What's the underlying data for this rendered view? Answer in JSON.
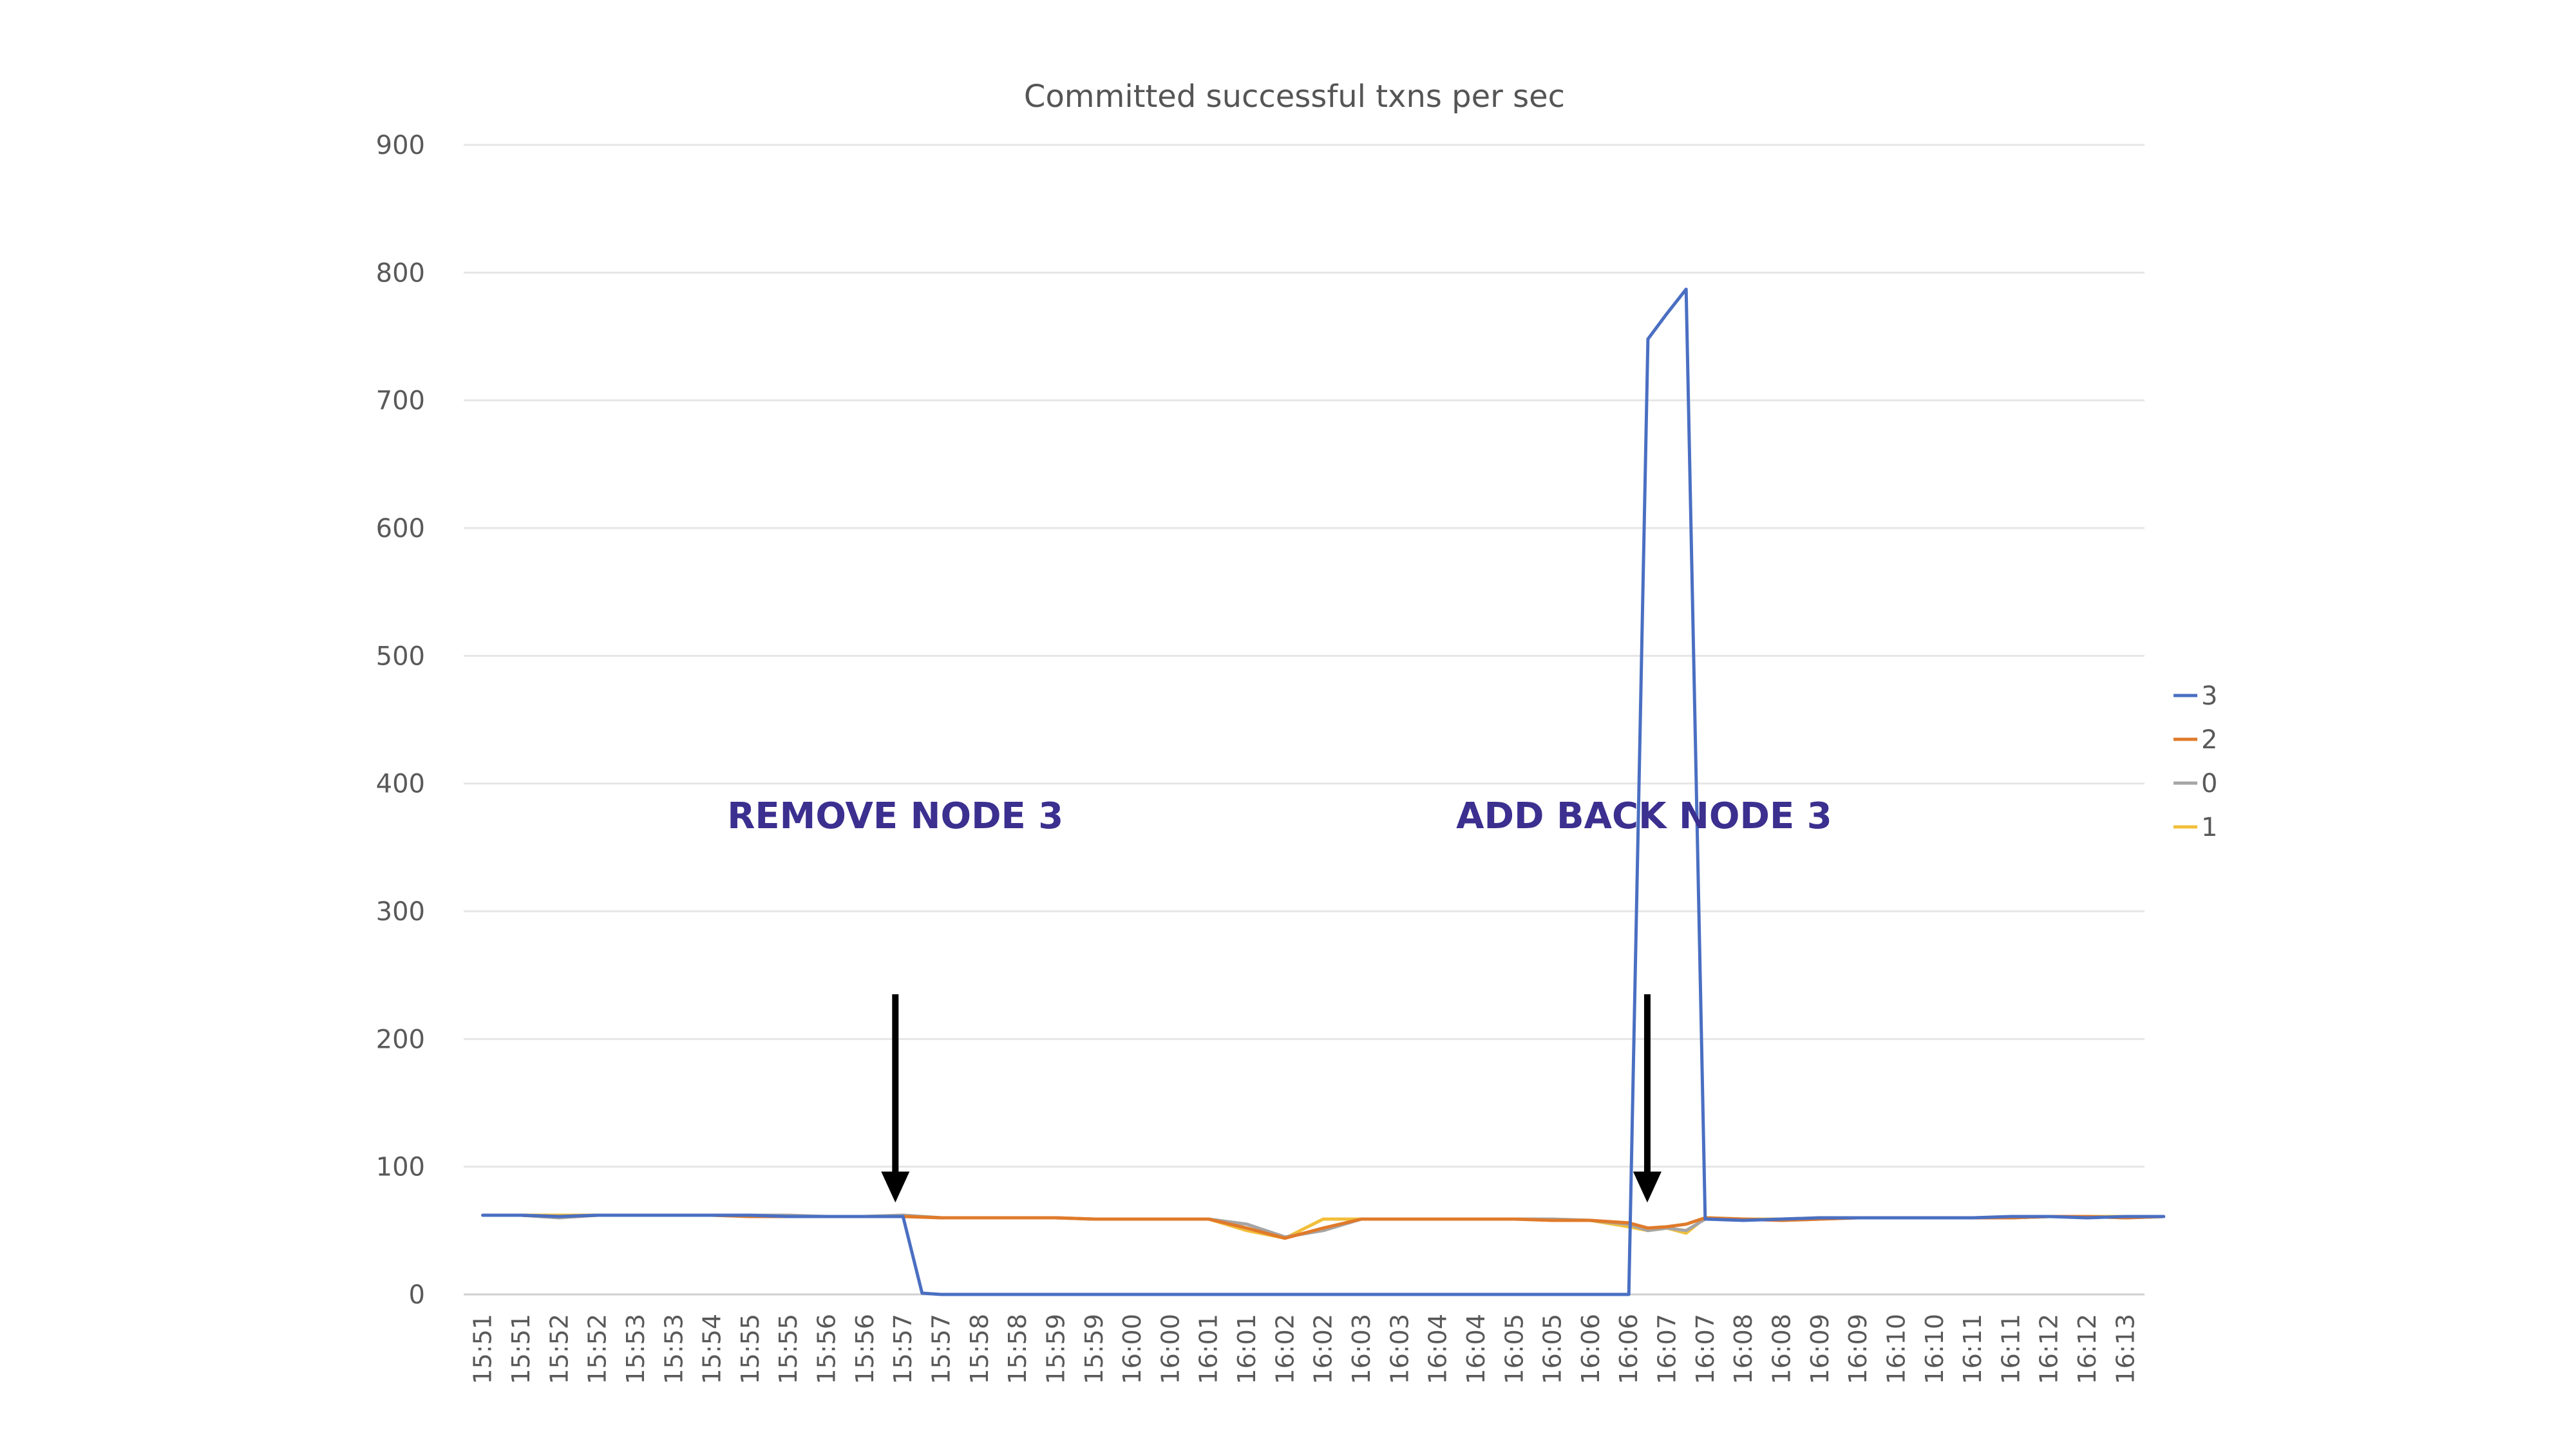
{
  "colors": {
    "series_3": "#4a6fc2",
    "series_2": "#e07a2b",
    "series_0": "#a5a5a5",
    "series_1": "#f2bf3a",
    "annotation": "#3b2f8f",
    "arrow": "#000000",
    "grid": "#e6e6e6"
  },
  "chart_data": {
    "type": "line",
    "title": "Committed successful txns per sec",
    "xlabel": "",
    "ylabel": "",
    "ylim": [
      0,
      900
    ],
    "yticks": [
      0,
      100,
      200,
      300,
      400,
      500,
      600,
      700,
      800,
      900
    ],
    "grid": true,
    "legend": "right",
    "categories": [
      "15:51",
      "15:51",
      "15:52",
      "15:52",
      "15:53",
      "15:53",
      "15:54",
      "15:55",
      "15:55",
      "15:56",
      "15:56",
      "15:57",
      "15:57",
      "15:58",
      "15:58",
      "15:59",
      "15:59",
      "16:00",
      "16:00",
      "16:01",
      "16:01",
      "16:02",
      "16:02",
      "16:03",
      "16:03",
      "16:04",
      "16:04",
      "16:05",
      "16:05",
      "16:06",
      "16:06",
      "16:07",
      "16:07",
      "16:08",
      "16:08",
      "16:09",
      "16:09",
      "16:10",
      "16:10",
      "16:11",
      "16:11",
      "16:12",
      "16:12",
      "16:13"
    ],
    "series": [
      {
        "name": "3",
        "color": "#4a6fc2",
        "x": [
          0,
          1,
          2,
          3,
          4,
          5,
          6,
          7,
          8,
          9,
          10,
          11,
          11.5,
          12,
          13,
          14,
          15,
          16,
          17,
          18,
          19,
          20,
          21,
          22,
          23,
          24,
          25,
          26,
          27,
          28,
          29,
          29.5,
          30,
          30.5,
          31,
          31.5,
          32,
          33,
          34,
          35,
          36,
          37,
          38,
          39,
          40,
          41,
          42,
          43,
          44
        ],
        "values": [
          62,
          62,
          61,
          62,
          62,
          62,
          62,
          62,
          61,
          61,
          61,
          61,
          1,
          0,
          0,
          0,
          0,
          0,
          0,
          0,
          0,
          0,
          0,
          0,
          0,
          0,
          0,
          0,
          0,
          0,
          0,
          0,
          0,
          748,
          768,
          787,
          59,
          58,
          59,
          60,
          60,
          60,
          60,
          60,
          61,
          61,
          60,
          61,
          61
        ]
      },
      {
        "name": "2",
        "color": "#e07a2b",
        "x": [
          0,
          1,
          2,
          3,
          4,
          5,
          6,
          7,
          8,
          9,
          10,
          11,
          12,
          13,
          14,
          15,
          16,
          17,
          18,
          19,
          20,
          21,
          22,
          23,
          24,
          25,
          26,
          27,
          28,
          29,
          30,
          30.5,
          31,
          31.5,
          32,
          33,
          34,
          35,
          36,
          37,
          38,
          39,
          40,
          41,
          42,
          43,
          44
        ],
        "values": [
          62,
          62,
          61,
          62,
          62,
          62,
          62,
          61,
          61,
          61,
          61,
          61,
          60,
          60,
          60,
          60,
          59,
          59,
          59,
          59,
          52,
          44,
          52,
          59,
          59,
          59,
          59,
          59,
          58,
          58,
          56,
          52,
          53,
          55,
          60,
          59,
          58,
          59,
          60,
          60,
          60,
          60,
          60,
          61,
          61,
          60,
          61
        ]
      },
      {
        "name": "0",
        "color": "#a5a5a5",
        "x": [
          0,
          1,
          2,
          3,
          4,
          5,
          6,
          7,
          8,
          9,
          10,
          11,
          12,
          13,
          14,
          15,
          16,
          17,
          18,
          19,
          20,
          21,
          22,
          23,
          24,
          25,
          26,
          27,
          28,
          29,
          30,
          30.5,
          31,
          31.5,
          32,
          33,
          34,
          35,
          36,
          37,
          38,
          39,
          40,
          41,
          42,
          43,
          44
        ],
        "values": [
          62,
          62,
          60,
          62,
          62,
          62,
          62,
          62,
          62,
          61,
          61,
          62,
          60,
          60,
          60,
          60,
          59,
          59,
          59,
          59,
          55,
          45,
          50,
          59,
          59,
          59,
          59,
          59,
          59,
          58,
          55,
          50,
          52,
          50,
          59,
          59,
          58,
          59,
          60,
          60,
          60,
          60,
          60,
          61,
          61,
          60,
          61
        ]
      },
      {
        "name": "1",
        "color": "#f2bf3a",
        "x": [
          0,
          1,
          2,
          3,
          4,
          5,
          6,
          7,
          8,
          9,
          10,
          11,
          12,
          13,
          14,
          15,
          16,
          17,
          18,
          19,
          20,
          21,
          22,
          23,
          24,
          25,
          26,
          27,
          28,
          29,
          30,
          30.5,
          31,
          31.5,
          32,
          33,
          34,
          35,
          36,
          37,
          38,
          39,
          40,
          41,
          42,
          43,
          44
        ],
        "values": [
          62,
          62,
          62,
          62,
          62,
          62,
          62,
          61,
          61,
          61,
          61,
          62,
          60,
          60,
          60,
          60,
          59,
          59,
          59,
          59,
          50,
          44,
          59,
          59,
          59,
          59,
          59,
          59,
          59,
          58,
          53,
          50,
          52,
          48,
          60,
          59,
          59,
          60,
          60,
          60,
          60,
          60,
          60,
          61,
          61,
          61,
          61
        ]
      }
    ],
    "annotations": [
      {
        "text": "REMOVE NODE 3",
        "x": 10.8,
        "y": 365,
        "arrow_from_y": 235,
        "arrow_to_y": 72
      },
      {
        "text": "ADD BACK NODE 3",
        "x": 30.4,
        "y": 365,
        "arrow_from_y": 235,
        "arrow_to_y": 72
      }
    ]
  }
}
